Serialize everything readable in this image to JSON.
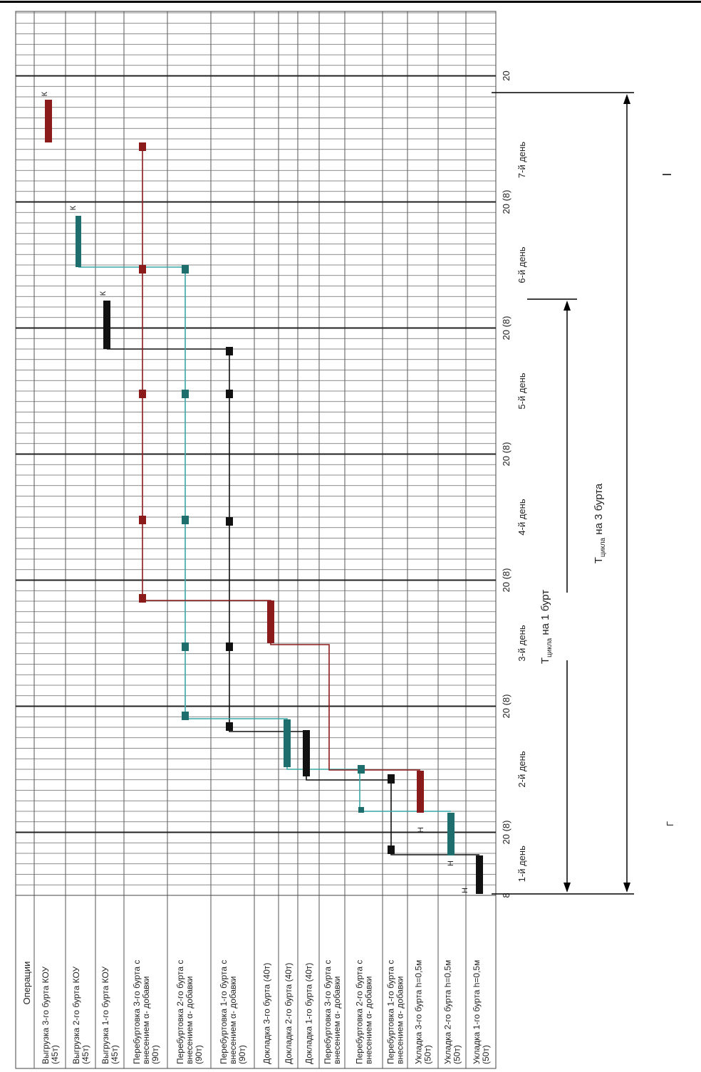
{
  "table": {
    "header": "Операции",
    "operations": [
      [
        "Выгрузка 3-го бурта КОУ",
        "(45т)"
      ],
      [
        "Выгрузка 2-го бурта КОУ",
        "(45т)"
      ],
      [
        "Выгрузка 1-го бурта КОУ",
        "(45т)"
      ],
      [
        "Перебуртовка 3-го бурта с",
        "внесением α- добавки",
        "(90т)"
      ],
      [
        "Перебуртовка 2-го бурта с",
        "внесением α- добавки",
        "(90т)"
      ],
      [
        "Перебуртовка 1-го бурта с",
        "внесением α- добавки",
        "(90т)"
      ],
      [
        "Докладка 3-го бурта (40т)"
      ],
      [
        "Докладка 2-го бурта (40т)"
      ],
      [
        "Докладка 1-го бурта (40т)"
      ],
      [
        "Перебуртовка 3-го бурта с",
        "внесением α- добавки"
      ],
      [
        "Перебуртовка 2-го бурта с",
        "внесением α- добавки"
      ],
      [
        "Перебуртовка 1-го бурта с",
        "внесением α- добавки"
      ],
      [
        "Укладка 3-го бурта h=0,5м",
        "(50т)"
      ],
      [
        "Укладка 2-го бурта h=0,5м",
        "(50т)"
      ],
      [
        "Укладка 1-го бурта h=0,5м",
        "(50т)"
      ]
    ]
  },
  "time_axis": {
    "start_label": "8",
    "hour_labels": [
      "20 (8)",
      "20 (8)",
      "20 (8)",
      "20 (8)",
      "20 (8)",
      "20 (8)",
      "20"
    ],
    "day_labels": [
      "1-й день",
      "2-й день",
      "3-й день",
      "4-й день",
      "5-й день",
      "6-й день",
      "7-й день"
    ]
  },
  "markers": {
    "start": "Н",
    "end": "К"
  },
  "cycles": {
    "one": {
      "symbol": "T",
      "subscript": "цикла",
      "rest": " на 1 бурт"
    },
    "three": {
      "symbol": "T",
      "subscript": "цикла",
      "rest": " на 3 бурта"
    }
  },
  "caption_fragment": "Г",
  "colors": {
    "burt3": "#8b1a1a",
    "burt2": "#1f6e6e",
    "burt2_line": "#39a7a7",
    "burt1": "#111111",
    "grid": "#444444"
  }
}
